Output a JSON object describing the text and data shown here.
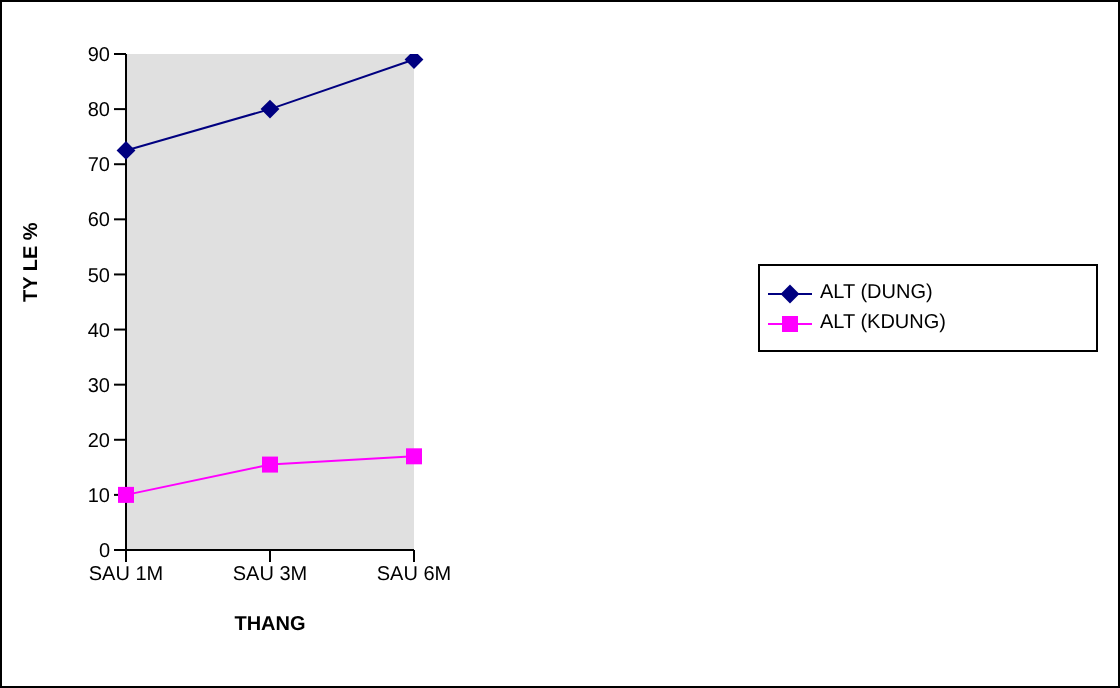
{
  "chart_data": {
    "type": "line",
    "xlabel": "THANG",
    "ylabel": "TY LE %",
    "categories": [
      "SAU 1M",
      "SAU 3M",
      "SAU 6M"
    ],
    "series": [
      {
        "name": "ALT (DUNG)",
        "color": "#000080",
        "marker": "diamond",
        "values": [
          72.5,
          80,
          89
        ]
      },
      {
        "name": "ALT (KDUNG)",
        "color": "#ff00ff",
        "marker": "square",
        "values": [
          10,
          15.5,
          17
        ]
      }
    ],
    "ylim": [
      0,
      90
    ],
    "yticks": [
      0,
      10,
      20,
      30,
      40,
      50,
      60,
      70,
      80,
      90
    ],
    "grid": false,
    "legend": "right"
  }
}
